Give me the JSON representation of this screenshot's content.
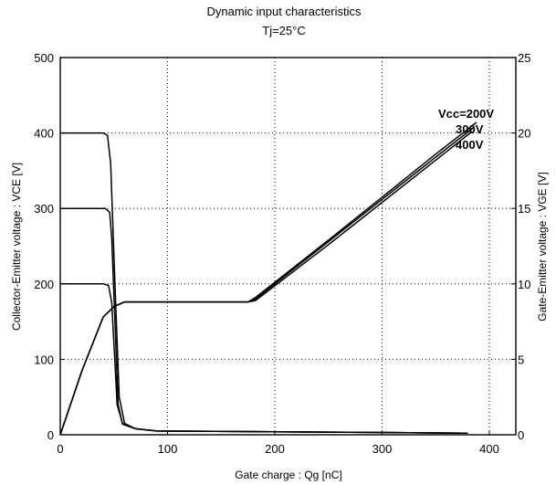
{
  "chart_data": {
    "type": "line",
    "title": "Dynamic input characteristics",
    "subtitle": "Tj=25°C",
    "xlabel": "Gate charge : Qg [nC]",
    "ylabel_left": "Collector-Emitter voltage : VCE [V]",
    "ylabel_right": "Gate-Emitter voltage : VGE [V]",
    "xlim": [
      0,
      430
    ],
    "ylim_left": [
      0,
      500
    ],
    "ylim_right": [
      0,
      25
    ],
    "x_ticks": [
      "0",
      "100",
      "200",
      "300",
      "400"
    ],
    "y_left_ticks": [
      "0",
      "100",
      "200",
      "300",
      "400",
      "500"
    ],
    "y_right_ticks": [
      "0",
      "5",
      "10",
      "15",
      "20",
      "25"
    ],
    "grid": true,
    "series": [
      {
        "name": "Vcc=200V",
        "axis": "left",
        "x": [
          0,
          40,
          45,
          48,
          50,
          53,
          58,
          70,
          90,
          200,
          300,
          380
        ],
        "y": [
          200,
          200,
          198,
          175,
          120,
          40,
          15,
          8,
          5,
          4,
          3,
          2
        ]
      },
      {
        "name": "300V",
        "axis": "left",
        "x": [
          0,
          42,
          46,
          48,
          51,
          54,
          58,
          70,
          90,
          200,
          300,
          380
        ],
        "y": [
          300,
          300,
          295,
          260,
          150,
          40,
          14,
          8,
          5,
          4,
          3,
          2
        ]
      },
      {
        "name": "400V",
        "axis": "left",
        "x": [
          0,
          40,
          44,
          47,
          51,
          55,
          60,
          70,
          90,
          200,
          300,
          380
        ],
        "y": [
          400,
          400,
          397,
          360,
          200,
          50,
          15,
          8,
          5,
          4,
          3,
          2
        ]
      },
      {
        "name": "Vcc=200V",
        "axis": "right",
        "x": [
          0,
          20,
          40,
          50,
          60,
          80,
          175,
          182,
          250,
          350,
          388
        ],
        "y": [
          0,
          4.2,
          7.8,
          8.5,
          8.8,
          8.8,
          8.8,
          9.1,
          12.9,
          18.6,
          20.7
        ]
      },
      {
        "name": "300V",
        "axis": "right",
        "x": [
          0,
          20,
          40,
          50,
          60,
          80,
          175,
          182,
          250,
          350,
          386
        ],
        "y": [
          0,
          4.2,
          7.8,
          8.5,
          8.8,
          8.8,
          8.8,
          9.0,
          12.8,
          18.4,
          20.4
        ]
      },
      {
        "name": "400V",
        "axis": "right",
        "x": [
          0,
          20,
          40,
          50,
          60,
          80,
          175,
          182,
          250,
          350,
          384
        ],
        "y": [
          0,
          4.2,
          7.8,
          8.5,
          8.8,
          8.8,
          8.8,
          8.9,
          12.6,
          18.2,
          20.1
        ]
      }
    ],
    "annotations": [
      "Vcc=200V",
      "300V",
      "400V"
    ]
  }
}
